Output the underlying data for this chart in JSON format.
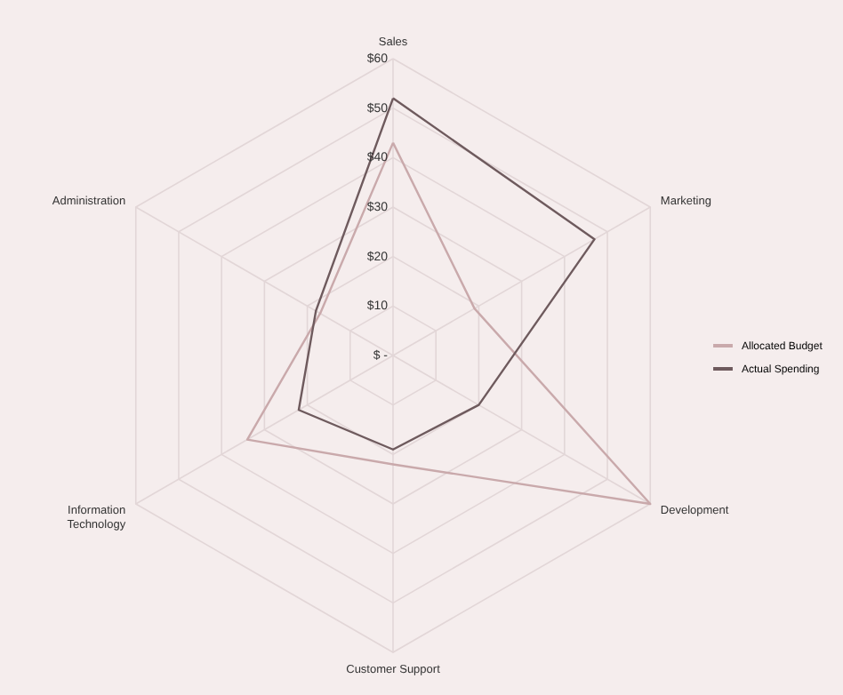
{
  "chart_data": {
    "type": "radar",
    "categories": [
      "Sales",
      "Marketing",
      "Development",
      "Customer Support",
      "Information Technology",
      "Administration"
    ],
    "series": [
      {
        "name": "Allocated Budget",
        "color": "#c9a9ab",
        "values": [
          43,
          19,
          60,
          22,
          34,
          17
        ]
      },
      {
        "name": "Actual Spending",
        "color": "#6e5a5d",
        "values": [
          52,
          47,
          20,
          19,
          22,
          18
        ]
      }
    ],
    "ylim": [
      0,
      60
    ],
    "yticks": [
      {
        "value": 0,
        "label": "$ -"
      },
      {
        "value": 10,
        "label": "$10"
      },
      {
        "value": 20,
        "label": "$20"
      },
      {
        "value": 30,
        "label": "$30"
      },
      {
        "value": 40,
        "label": "$40"
      },
      {
        "value": 50,
        "label": "$50"
      },
      {
        "value": 60,
        "label": "$60"
      }
    ],
    "grid": true,
    "legend": "right"
  }
}
